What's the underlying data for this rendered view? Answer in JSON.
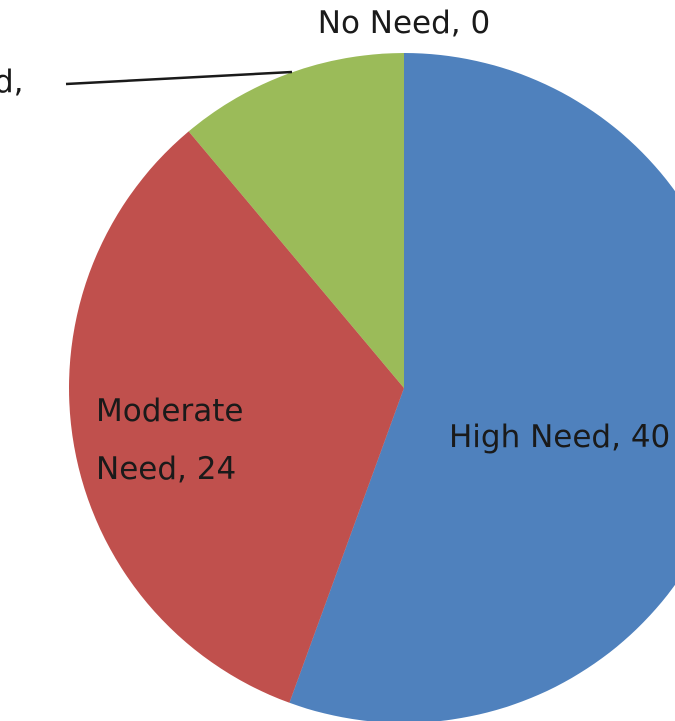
{
  "chart_data": {
    "type": "pie",
    "categories": [
      "High Need",
      "Moderate Need",
      "No Need",
      "Low Need"
    ],
    "values": [
      40,
      24,
      0,
      8
    ],
    "colors": [
      "#4F81BD",
      "#C0504D",
      "#F79646",
      "#9BBB59"
    ],
    "data_labels": [
      {
        "lines": [
          "High Need, 40"
        ]
      },
      {
        "lines": [
          "Moderate",
          "Need, 24"
        ]
      },
      {
        "lines": [
          "No Need, 0"
        ]
      },
      {
        "lines": [
          "d,"
        ]
      }
    ],
    "title": "",
    "legend": "none"
  }
}
